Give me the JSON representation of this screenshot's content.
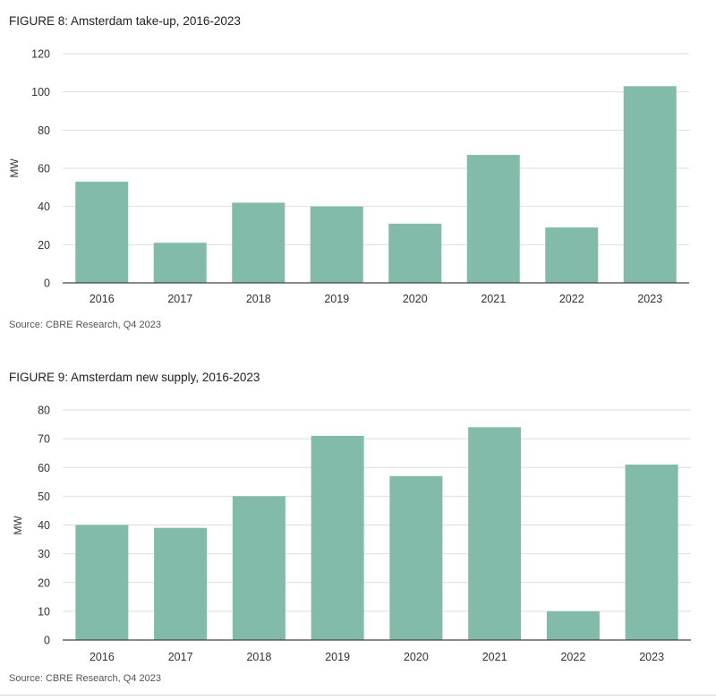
{
  "colors": {
    "bar": "#82bba9",
    "grid": "#dedede",
    "axis": "#444444"
  },
  "figures": [
    {
      "title": "FIGURE 8: Amsterdam take-up, 2016-2023",
      "source": "Source: CBRE Research, Q4 2023"
    },
    {
      "title": "FIGURE 9: Amsterdam new supply, 2016-2023",
      "source": "Source: CBRE Research, Q4 2023"
    }
  ],
  "chart_data": [
    {
      "type": "bar",
      "title": "FIGURE 8: Amsterdam take-up, 2016-2023",
      "xlabel": "",
      "ylabel": "MW",
      "categories": [
        "2016",
        "2017",
        "2018",
        "2019",
        "2020",
        "2021",
        "2022",
        "2023"
      ],
      "values": [
        53,
        21,
        42,
        40,
        31,
        67,
        29,
        103
      ],
      "ylim": [
        0,
        120
      ],
      "yticks": [
        0,
        20,
        40,
        60,
        80,
        100,
        120
      ],
      "grid": true,
      "legend": "none"
    },
    {
      "type": "bar",
      "title": "FIGURE 9: Amsterdam new supply, 2016-2023",
      "xlabel": "",
      "ylabel": "MW",
      "categories": [
        "2016",
        "2017",
        "2018",
        "2019",
        "2020",
        "2021",
        "2022",
        "2023"
      ],
      "values": [
        40,
        39,
        50,
        71,
        57,
        74,
        10,
        61
      ],
      "ylim": [
        0,
        80
      ],
      "yticks": [
        0,
        10,
        20,
        30,
        40,
        50,
        60,
        70,
        80
      ],
      "grid": true,
      "legend": "none"
    }
  ]
}
